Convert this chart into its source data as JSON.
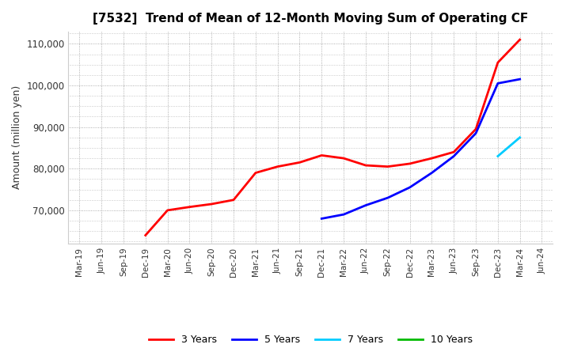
{
  "title": "[7532]  Trend of Mean of 12-Month Moving Sum of Operating CF",
  "ylabel": "Amount (million yen)",
  "background_color": "#ffffff",
  "grid_color": "#999999",
  "ylim": [
    62000,
    113000
  ],
  "series": {
    "3years": {
      "color": "#ff0000",
      "label": "3 Years",
      "x": [
        "Dec-19",
        "Mar-20",
        "Jun-20",
        "Sep-20",
        "Dec-20",
        "Mar-21",
        "Jun-21",
        "Sep-21",
        "Dec-21",
        "Mar-22",
        "Jun-22",
        "Sep-22",
        "Dec-22",
        "Mar-23",
        "Jun-23",
        "Sep-23",
        "Dec-23",
        "Mar-24"
      ],
      "y": [
        64000,
        70000,
        70800,
        71500,
        72500,
        79000,
        80500,
        81500,
        83200,
        82500,
        80800,
        80500,
        81200,
        82500,
        84000,
        89500,
        105500,
        111000
      ]
    },
    "5years": {
      "color": "#0000ff",
      "label": "5 Years",
      "x": [
        "Dec-21",
        "Mar-22",
        "Jun-22",
        "Sep-22",
        "Dec-22",
        "Mar-23",
        "Jun-23",
        "Sep-23",
        "Dec-23",
        "Mar-24"
      ],
      "y": [
        68000,
        69000,
        71200,
        73000,
        75500,
        79000,
        83000,
        88500,
        100500,
        101500
      ]
    },
    "7years": {
      "color": "#00ccff",
      "label": "7 Years",
      "x": [
        "Dec-23",
        "Mar-24"
      ],
      "y": [
        83000,
        87500
      ]
    },
    "10years": {
      "color": "#00bb00",
      "label": "10 Years",
      "x": [],
      "y": []
    }
  },
  "xtick_labels": [
    "Mar-19",
    "Jun-19",
    "Sep-19",
    "Dec-19",
    "Mar-20",
    "Jun-20",
    "Sep-20",
    "Dec-20",
    "Mar-21",
    "Jun-21",
    "Sep-21",
    "Dec-21",
    "Mar-22",
    "Jun-22",
    "Sep-22",
    "Dec-22",
    "Mar-23",
    "Jun-23",
    "Sep-23",
    "Dec-23",
    "Mar-24",
    "Jun-24"
  ],
  "ytick_values": [
    70000,
    80000,
    90000,
    100000,
    110000
  ],
  "legend_order": [
    "3 Years",
    "5 Years",
    "7 Years",
    "10 Years"
  ],
  "legend_colors": [
    "#ff0000",
    "#0000ff",
    "#00ccff",
    "#00bb00"
  ],
  "linewidth": 2.0
}
